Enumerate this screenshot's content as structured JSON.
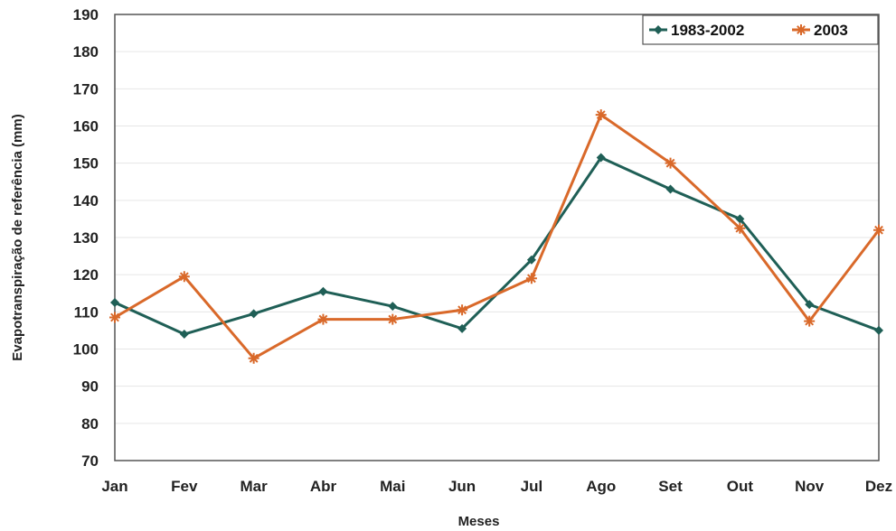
{
  "chart_data": {
    "type": "line",
    "title": "",
    "xlabel": "Meses",
    "ylabel": "Evapotranspiração de referência (mm)",
    "categories": [
      "Jan",
      "Fev",
      "Mar",
      "Abr",
      "Mai",
      "Jun",
      "Jul",
      "Ago",
      "Set",
      "Out",
      "Nov",
      "Dez"
    ],
    "ylim": [
      70,
      190
    ],
    "yticks": [
      70,
      80,
      90,
      100,
      110,
      120,
      130,
      140,
      150,
      160,
      170,
      180,
      190
    ],
    "grid": true,
    "legend_position": "top-right",
    "series": [
      {
        "name": "1983-2002",
        "color": "#1f5f56",
        "marker": "diamond",
        "values": [
          112.5,
          104,
          109.5,
          115.5,
          111.5,
          105.5,
          124,
          151.5,
          143,
          135,
          112,
          105
        ]
      },
      {
        "name": "2003",
        "color": "#d9692a",
        "marker": "star",
        "values": [
          108.5,
          119.5,
          97.5,
          108,
          108,
          110.5,
          119,
          163,
          150,
          132.5,
          107.5,
          132
        ]
      }
    ]
  }
}
